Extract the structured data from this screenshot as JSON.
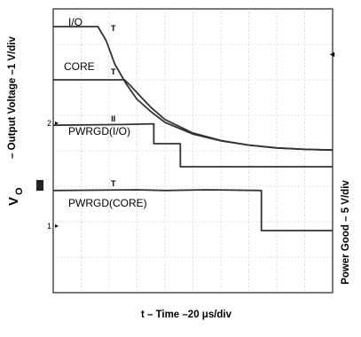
{
  "chart_data": {
    "type": "line",
    "title": "",
    "xlabel": "t – Time –20 μs/div",
    "ylabel_left": "– Output Voltage –1 V/div",
    "ylabel_left_symbol": "V",
    "ylabel_left_subscript": "O",
    "ylabel_right": "Power Good – 5 V/div",
    "x_divisions": 10,
    "y_divisions": 8,
    "grid": true,
    "tick_labels": [
      {
        "text": "2",
        "div_y": 4.8
      },
      {
        "text": "1",
        "div_y": 1.9
      }
    ],
    "series": [
      {
        "name": "I/O",
        "points": [
          [
            0,
            7.5
          ],
          [
            1.6,
            7.5
          ],
          [
            1.9,
            7.1
          ],
          [
            2.2,
            6.45
          ],
          [
            2.6,
            5.9
          ],
          [
            3.0,
            5.45
          ],
          [
            3.5,
            5.1
          ],
          [
            4.0,
            4.8
          ],
          [
            5.0,
            4.47
          ],
          [
            6.0,
            4.28
          ],
          [
            7.0,
            4.16
          ],
          [
            8.0,
            4.08
          ],
          [
            9.0,
            4.04
          ],
          [
            10.0,
            4.02
          ]
        ]
      },
      {
        "name": "CORE",
        "points": [
          [
            0,
            6.0
          ],
          [
            2.55,
            6.0
          ],
          [
            2.75,
            5.85
          ],
          [
            3.1,
            5.55
          ],
          [
            3.5,
            5.22
          ],
          [
            4.0,
            4.88
          ],
          [
            5.0,
            4.5
          ],
          [
            6.0,
            4.29
          ],
          [
            7.0,
            4.16
          ],
          [
            8.0,
            4.08
          ],
          [
            9.0,
            4.04
          ],
          [
            10.0,
            4.02
          ]
        ]
      },
      {
        "name": "PWRGD(I/O)",
        "points": [
          [
            0,
            4.72
          ],
          [
            2.5,
            4.74
          ],
          [
            3.6,
            4.76
          ],
          [
            3.6,
            4.2
          ],
          [
            4.55,
            4.2
          ],
          [
            4.55,
            3.55
          ],
          [
            10.0,
            3.55
          ]
        ]
      },
      {
        "name": "PWRGD(CORE)",
        "points": [
          [
            0,
            2.88
          ],
          [
            3.0,
            2.9
          ],
          [
            4.0,
            2.88
          ],
          [
            5.5,
            2.9
          ],
          [
            7.45,
            2.88
          ],
          [
            7.45,
            1.75
          ],
          [
            10.0,
            1.75
          ]
        ]
      }
    ],
    "markers": [
      {
        "text": "T",
        "div_x": 2.15,
        "div_y": 7.38
      },
      {
        "text": "T",
        "div_x": 2.15,
        "div_y": 6.15
      },
      {
        "text": "II",
        "div_x": 2.15,
        "div_y": 4.82
      },
      {
        "text": "T",
        "div_x": 2.15,
        "div_y": 3.0
      }
    ]
  }
}
